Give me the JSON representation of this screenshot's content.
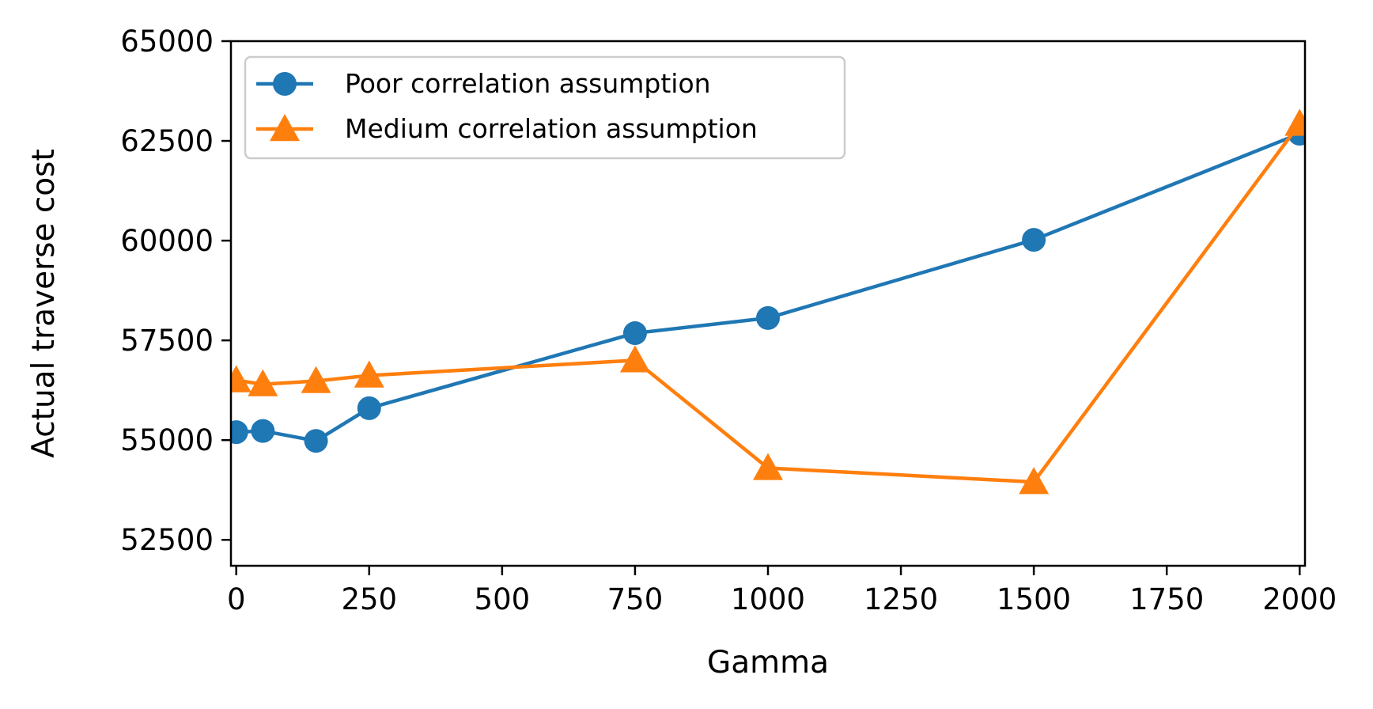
{
  "chart_data": {
    "type": "line",
    "xlabel": "Gamma",
    "ylabel": "Actual traverse cost",
    "xlim": [
      -10,
      2010
    ],
    "ylim": [
      51850,
      65000
    ],
    "xticks": [
      0,
      250,
      500,
      750,
      1000,
      1250,
      1500,
      1750,
      2000
    ],
    "xtick_labels": [
      "0",
      "250",
      "500",
      "750",
      "1000",
      "1250",
      "1500",
      "1750",
      "2000"
    ],
    "yticks": [
      52500,
      55000,
      57500,
      60000,
      62500,
      65000
    ],
    "ytick_labels": [
      "52500",
      "55000",
      "57500",
      "60000",
      "62500",
      "65000"
    ],
    "grid": false,
    "legend_position": "top-left",
    "series": [
      {
        "name": "Poor correlation assumption",
        "color": "#1f77b4",
        "marker": "circle",
        "x": [
          0,
          50,
          150,
          250,
          750,
          1000,
          1500,
          2000
        ],
        "y": [
          55200,
          55230,
          54980,
          55800,
          57680,
          58060,
          60020,
          62680
        ]
      },
      {
        "name": "Medium correlation assumption",
        "color": "#ff7f0e",
        "marker": "triangle",
        "x": [
          0,
          50,
          150,
          250,
          750,
          1000,
          1500,
          2000
        ],
        "y": [
          56500,
          56400,
          56480,
          56620,
          57000,
          54300,
          53950,
          62930
        ]
      }
    ]
  }
}
